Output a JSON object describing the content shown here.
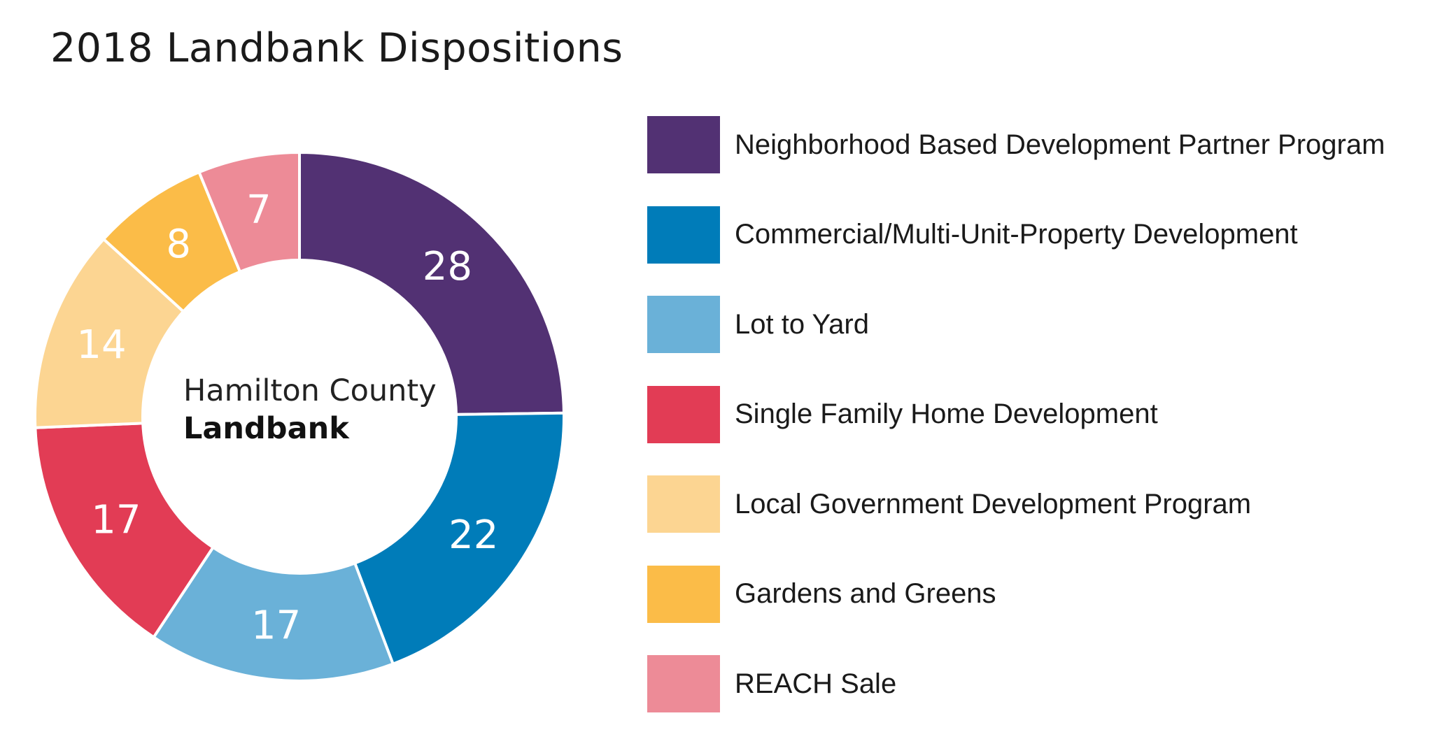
{
  "chart_data": {
    "type": "pie",
    "title": "2018 Landbank Dispositions",
    "center_label": {
      "line1": "Hamilton County",
      "line2": "Landbank"
    },
    "categories": [
      "Neighborhood Based Development Partner Program",
      "Commercial/Multi-Unit-Property Development",
      "Lot to Yard",
      "Single Family Home Development",
      "Local Government Development Program",
      "Gardens and Greens",
      "REACH Sale"
    ],
    "values": [
      28,
      22,
      17,
      17,
      14,
      8,
      7
    ],
    "colors": [
      "#523173",
      "#007cb9",
      "#6ab1d8",
      "#e23c55",
      "#fcd592",
      "#fbbc48",
      "#ed8b97"
    ],
    "legend": "right",
    "donut": true
  }
}
